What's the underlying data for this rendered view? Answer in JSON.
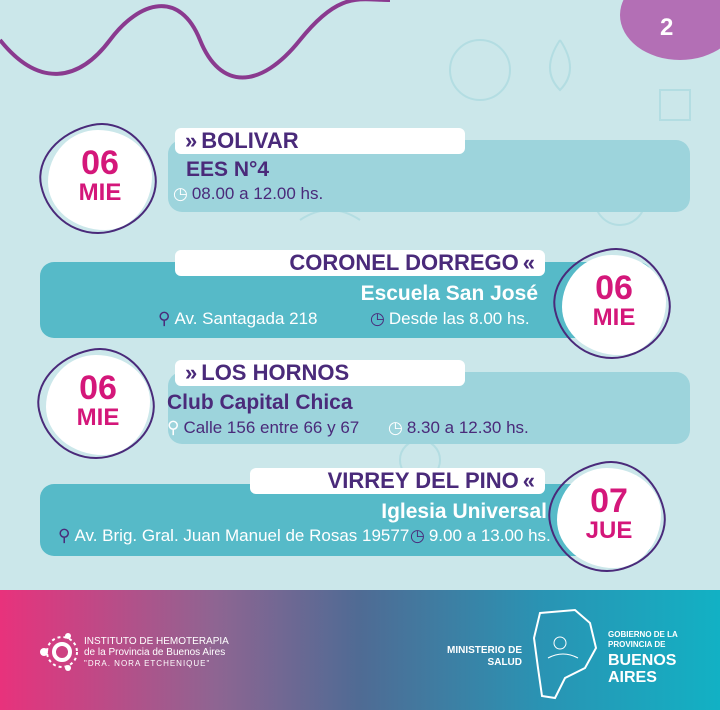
{
  "page_number": "2",
  "colors": {
    "purple": "#4a2a7a",
    "magenta": "#d4177a",
    "bar_light": "#9dd4dc",
    "bar_dark": "#56bac8"
  },
  "events": [
    {
      "city": "BOLIVAR",
      "place": "EES N°4",
      "address": "",
      "time": "08.00 a 12.00 hs.",
      "day": "06",
      "weekday": "MIE"
    },
    {
      "city": "CORONEL DORREGO",
      "place": "Escuela San José",
      "address": "Av. Santagada 218",
      "time": "Desde las 8.00 hs.",
      "day": "06",
      "weekday": "MIE"
    },
    {
      "city": "LOS HORNOS",
      "place": "Club Capital Chica",
      "address": "Calle 156 entre 66 y 67",
      "time": "8.30 a 12.30 hs.",
      "day": "06",
      "weekday": "MIE"
    },
    {
      "city": "VIRREY DEL PINO",
      "place": "Iglesia Universal",
      "address": "Av. Brig. Gral. Juan Manuel de Rosas 19577",
      "time": "9.00 a 13.00 hs.",
      "day": "07",
      "weekday": "JUE"
    }
  ],
  "footer": {
    "institute_line1": "INSTITUTO DE HEMOTERAPIA",
    "institute_line2": "de la Provincia de Buenos Aires",
    "institute_line3": "\"DRA. NORA ETCHENIQUE\"",
    "ministry_line1": "MINISTERIO DE",
    "ministry_line2": "SALUD",
    "gov_line1": "GOBIERNO DE LA",
    "gov_line2": "PROVINCIA DE",
    "gov_line3": "BUENOS",
    "gov_line4": "AIRES"
  }
}
